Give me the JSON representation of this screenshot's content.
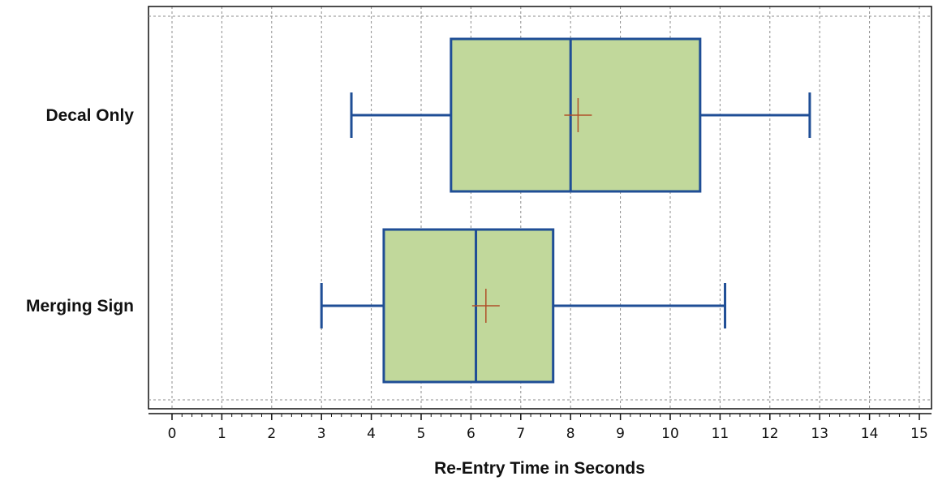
{
  "chart_data": {
    "type": "boxplot",
    "orientation": "horizontal",
    "xlabel": "Re-Entry Time in Seconds",
    "xlim": [
      0,
      15
    ],
    "xticks": [
      0,
      1,
      2,
      3,
      4,
      5,
      6,
      7,
      8,
      9,
      10,
      11,
      12,
      13,
      14,
      15
    ],
    "grid": "vertical dashed",
    "categories": [
      "Decal Only",
      "Merging Sign"
    ],
    "boxes": [
      {
        "category": "Decal Only",
        "whisker_low": 3.6,
        "q1": 5.6,
        "median": 8.0,
        "q3": 10.6,
        "whisker_high": 12.8,
        "mean": 8.15
      },
      {
        "category": "Merging Sign",
        "whisker_low": 3.0,
        "q1": 4.25,
        "median": 6.1,
        "q3": 7.65,
        "whisker_high": 11.1,
        "mean": 6.3
      }
    ],
    "colors": {
      "box_fill": "#c1d89b",
      "box_stroke": "#1f4e96",
      "mean_marker": "#b0502a",
      "grid": "#8c8c8c"
    }
  }
}
